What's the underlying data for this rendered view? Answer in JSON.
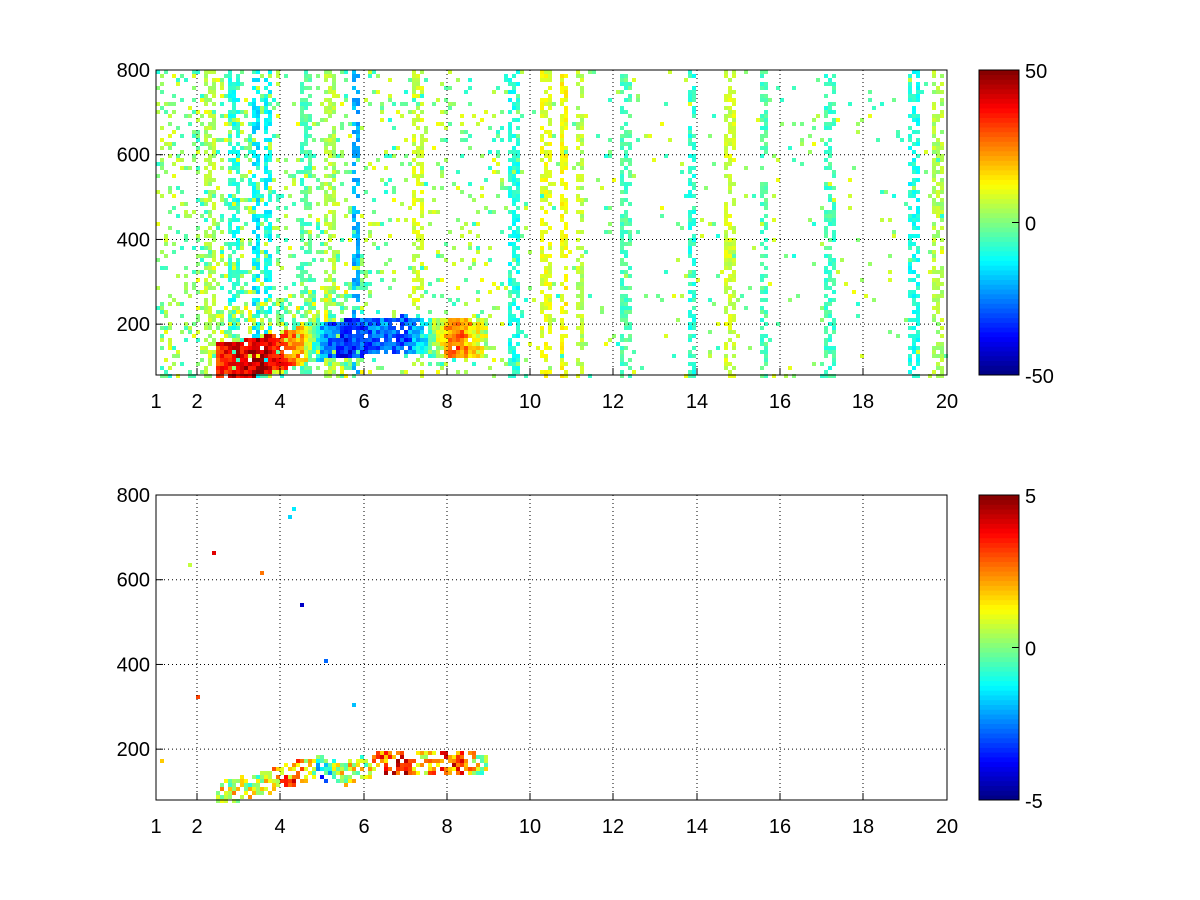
{
  "figure": {
    "background": "#ffffff",
    "grid": "dotted",
    "colormap": "jet"
  },
  "chart_data": [
    {
      "type": "heatmap",
      "title": "",
      "xlabel": "",
      "ylabel": "",
      "xlim": [
        1,
        20
      ],
      "ylim": [
        80,
        800
      ],
      "x_scale": "custom",
      "x_ticks": [
        1,
        2,
        4,
        6,
        8,
        10,
        12,
        14,
        16,
        18,
        20
      ],
      "x_tick_labels": [
        "1",
        "2",
        "4",
        "6",
        "8",
        "10",
        "12",
        "14",
        "16",
        "18",
        "20"
      ],
      "y_ticks": [
        200,
        400,
        600,
        800
      ],
      "y_tick_labels": [
        "200",
        "400",
        "600",
        "800"
      ],
      "grid": true,
      "colorbar": {
        "min": -50,
        "max": 50,
        "ticks": [
          -50,
          0,
          50
        ],
        "tick_labels": [
          "-50",
          "0",
          "50"
        ]
      },
      "description_values": {
        "ridge": [
          [
            2.5,
            110,
            35
          ],
          [
            3,
            115,
            40
          ],
          [
            3.5,
            125,
            45
          ],
          [
            4,
            135,
            35
          ],
          [
            4.5,
            150,
            20
          ],
          [
            5,
            160,
            -20
          ],
          [
            5.5,
            165,
            -35
          ],
          [
            6,
            170,
            -30
          ],
          [
            6.5,
            172,
            -25
          ],
          [
            7,
            175,
            -30
          ],
          [
            7.5,
            170,
            -10
          ],
          [
            8.2,
            168,
            30
          ],
          [
            9,
            165,
            5
          ]
        ],
        "noise_columns": [
          [
            2.3,
            5
          ],
          [
            2.9,
            -10
          ],
          [
            3.4,
            -15
          ],
          [
            3.7,
            -12
          ],
          [
            4.6,
            -5
          ],
          [
            5.2,
            5
          ],
          [
            5.8,
            -20
          ],
          [
            7.3,
            8
          ],
          [
            9.6,
            -10
          ],
          [
            10.4,
            10
          ],
          [
            10.8,
            12
          ],
          [
            11.2,
            6
          ],
          [
            12.3,
            -5
          ],
          [
            13.9,
            -8
          ],
          [
            14.8,
            8
          ],
          [
            15.6,
            -5
          ],
          [
            17.2,
            -6
          ],
          [
            19.2,
            -10
          ],
          [
            19.8,
            5
          ]
        ]
      }
    },
    {
      "type": "heatmap",
      "title": "",
      "xlabel": "",
      "ylabel": "",
      "xlim": [
        1,
        20
      ],
      "ylim": [
        80,
        800
      ],
      "x_scale": "custom",
      "x_ticks": [
        1,
        2,
        4,
        6,
        8,
        10,
        12,
        14,
        16,
        18,
        20
      ],
      "x_tick_labels": [
        "1",
        "2",
        "4",
        "6",
        "8",
        "10",
        "12",
        "14",
        "16",
        "18",
        "20"
      ],
      "y_ticks": [
        200,
        400,
        600,
        800
      ],
      "y_tick_labels": [
        "200",
        "400",
        "600",
        "800"
      ],
      "grid": true,
      "colorbar": {
        "min": -5,
        "max": 5,
        "ticks": [
          -5,
          0,
          5
        ],
        "tick_labels": [
          "-5",
          "0",
          "5"
        ]
      },
      "description_values": {
        "ridge": [
          [
            2.5,
            95,
            1
          ],
          [
            3,
            105,
            1
          ],
          [
            3.5,
            115,
            0.5
          ],
          [
            4,
            130,
            2
          ],
          [
            4.5,
            150,
            3
          ],
          [
            5,
            155,
            -2
          ],
          [
            5.5,
            140,
            1
          ],
          [
            6,
            160,
            0.5
          ],
          [
            6.5,
            165,
            3
          ],
          [
            7,
            168,
            3.5
          ],
          [
            7.5,
            165,
            1.5
          ],
          [
            8.2,
            170,
            3
          ],
          [
            9,
            165,
            0
          ]
        ]
      }
    }
  ]
}
